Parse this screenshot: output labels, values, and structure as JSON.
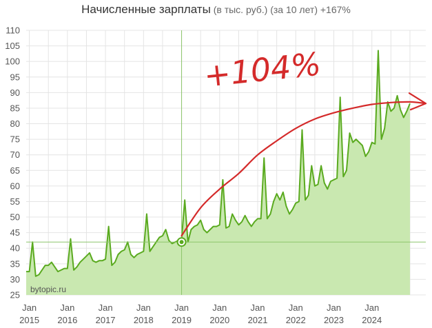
{
  "title": {
    "main": "Начисленные зарплаты",
    "sub": " (в тыс. руб.) (за 10 лет) +167%"
  },
  "watermark": "bytopic.ru",
  "annotation": "+104%",
  "colors": {
    "line": "#5aaa1f",
    "fill": "#c9e8b0",
    "trend": "#d42a2a",
    "grid": "#e4e4e4",
    "reference": "#8cc56a"
  },
  "chart_data": {
    "type": "area",
    "title": "Начисленные зарплаты",
    "subtitle": "(в тыс. руб.) (за 10 лет) +167%",
    "xlabel": "",
    "ylabel": "",
    "ylim": [
      25,
      110
    ],
    "yticks": [
      25,
      30,
      35,
      40,
      45,
      50,
      55,
      60,
      65,
      70,
      75,
      80,
      85,
      90,
      95,
      100,
      105,
      110
    ],
    "xlim": [
      "2014-12",
      "2025-06"
    ],
    "xticks": [
      {
        "month": "2015-01",
        "label1": "Jan",
        "label2": "2015"
      },
      {
        "month": "2016-01",
        "label1": "Jan",
        "label2": "2016"
      },
      {
        "month": "2017-01",
        "label1": "Jan",
        "label2": "2017"
      },
      {
        "month": "2018-01",
        "label1": "Jan",
        "label2": "2018"
      },
      {
        "month": "2019-01",
        "label1": "Jan",
        "label2": "2019"
      },
      {
        "month": "2020-01",
        "label1": "Jan",
        "label2": "2020"
      },
      {
        "month": "2021-01",
        "label1": "Jan",
        "label2": "2021"
      },
      {
        "month": "2022-01",
        "label1": "Jan",
        "label2": "2022"
      },
      {
        "month": "2023-01",
        "label1": "Jan",
        "label2": "2023"
      },
      {
        "month": "2024-01",
        "label1": "Jan",
        "label2": "2024"
      }
    ],
    "grid": true,
    "reference_line": {
      "y": 42,
      "x": "2019-01"
    },
    "highlight_point": {
      "month": "2019-01",
      "value": 42
    },
    "series": [
      {
        "start": "2014-12",
        "values": [
          32.5,
          32.5,
          42.0,
          31.0,
          31.5,
          33.0,
          34.5,
          34.5,
          35.5,
          34.0,
          32.5,
          33.0,
          33.5,
          33.5,
          43.0,
          33.0,
          34.0,
          35.5,
          36.5,
          37.5,
          38.5,
          36.0,
          35.5,
          36.0,
          36.0,
          36.5,
          47.0,
          34.5,
          35.5,
          38.0,
          39.0,
          39.5,
          42.0,
          38.0,
          37.0,
          38.0,
          38.5,
          39.0,
          51.0,
          39.0,
          40.5,
          42.0,
          43.5,
          44.0,
          46.0,
          42.5,
          41.5,
          42.0,
          42.5,
          43.0,
          55.5,
          42.0,
          46.0,
          47.0,
          47.5,
          49.0,
          46.0,
          45.0,
          46.0,
          47.0,
          47.0,
          47.5,
          62.0,
          46.5,
          47.0,
          51.0,
          49.0,
          47.5,
          48.5,
          50.5,
          48.5,
          47.0,
          48.5,
          49.5,
          49.5,
          69.0,
          49.5,
          51.0,
          55.0,
          57.5,
          55.5,
          58.0,
          53.5,
          51.0,
          52.5,
          54.5,
          55.0,
          78.0,
          55.5,
          57.0,
          66.5,
          60.0,
          60.5,
          66.5,
          61.0,
          59.0,
          61.5,
          62.0,
          62.5,
          88.5,
          63.0,
          65.0,
          77.0,
          74.0,
          75.0,
          74.0,
          73.0,
          69.5,
          71.0,
          74.0,
          73.5,
          103.5,
          75.0,
          78.5,
          87.0,
          84.0,
          85.0,
          89.0,
          84.5,
          82.0,
          84.0,
          86.5
        ]
      }
    ],
    "trend": {
      "start": "2019-01",
      "end": "2025-06",
      "values_by_year": [
        {
          "month": "2019-01",
          "value": 44
        },
        {
          "month": "2019-07",
          "value": 53
        },
        {
          "month": "2020-01",
          "value": 59
        },
        {
          "month": "2020-07",
          "value": 64
        },
        {
          "month": "2021-01",
          "value": 70
        },
        {
          "month": "2021-07",
          "value": 74.5
        },
        {
          "month": "2022-01",
          "value": 78.5
        },
        {
          "month": "2022-07",
          "value": 81.5
        },
        {
          "month": "2023-01",
          "value": 83.5
        },
        {
          "month": "2023-07",
          "value": 85
        },
        {
          "month": "2024-01",
          "value": 86.2
        },
        {
          "month": "2024-07",
          "value": 86.8
        },
        {
          "month": "2025-01",
          "value": 87.0
        },
        {
          "month": "2025-06",
          "value": 86.5
        }
      ]
    }
  }
}
